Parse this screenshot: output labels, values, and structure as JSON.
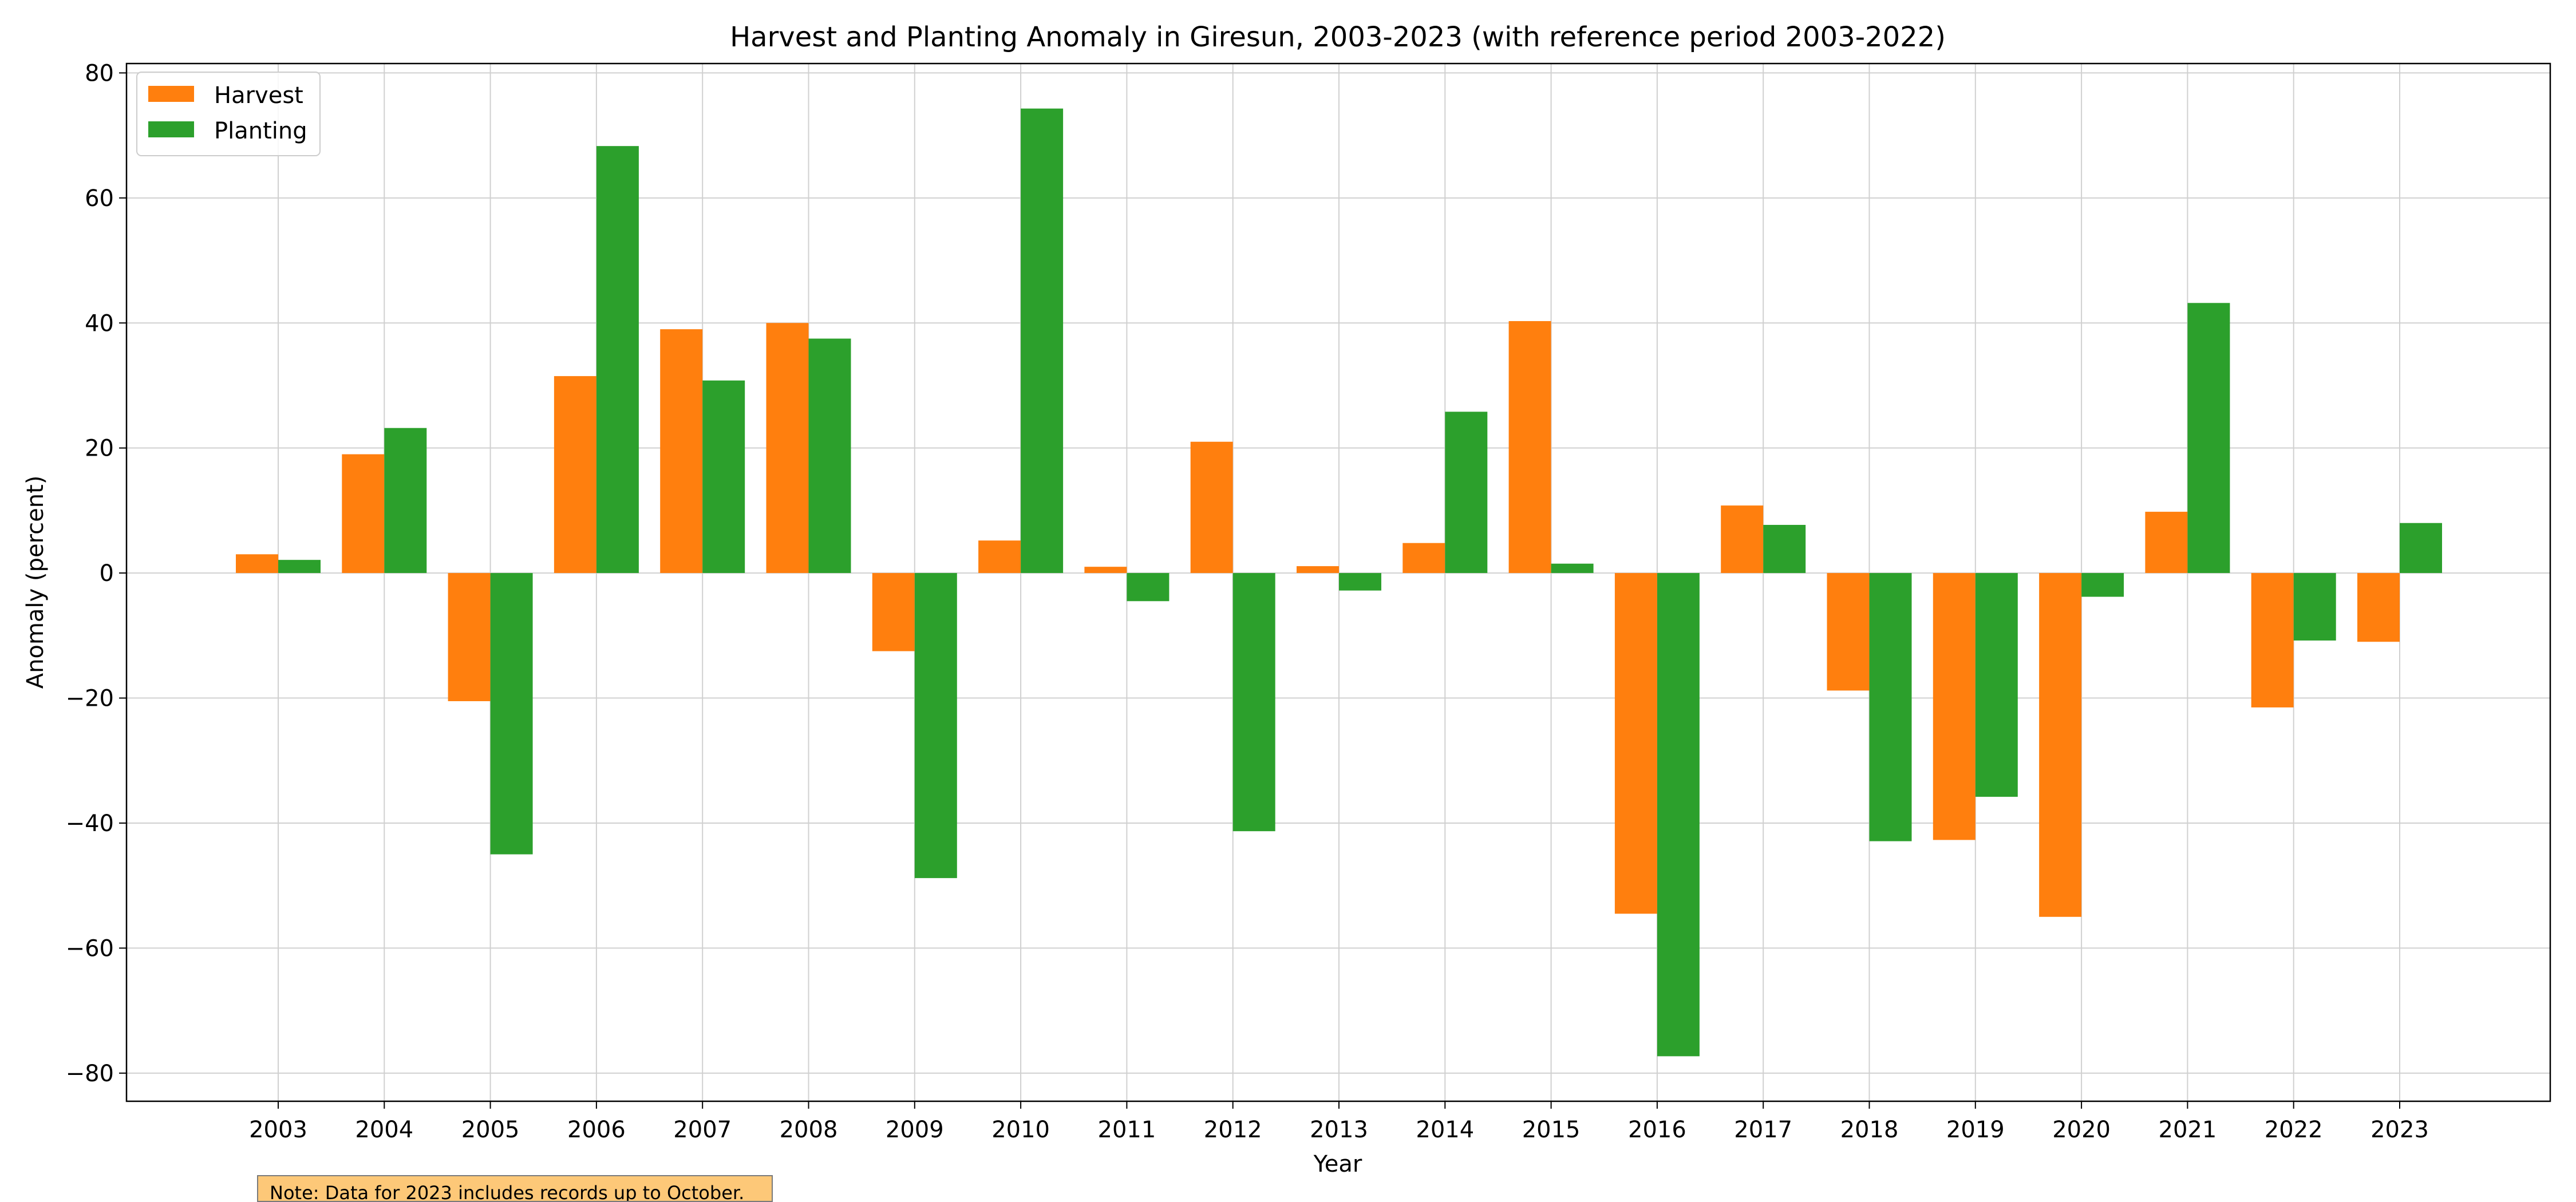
{
  "chart_data": {
    "type": "bar",
    "title": "Harvest and Planting Anomaly in Giresun, 2003-2023 (with reference period 2003-2022)",
    "xlabel": "Year",
    "ylabel": "Anomaly (percent)",
    "ylim": [
      -84.5,
      81.5
    ],
    "yticks": [
      80,
      60,
      40,
      20,
      0,
      -20,
      -40,
      -60,
      -80
    ],
    "ytick_labels": [
      "80",
      "60",
      "40",
      "20",
      "0",
      "−20",
      "−40",
      "−60",
      "−80"
    ],
    "grid": true,
    "legend_placement": "top-left",
    "categories": [
      "2003",
      "2004",
      "2005",
      "2006",
      "2007",
      "2008",
      "2009",
      "2010",
      "2011",
      "2012",
      "2013",
      "2014",
      "2015",
      "2016",
      "2017",
      "2018",
      "2019",
      "2020",
      "2021",
      "2022",
      "2023"
    ],
    "series": [
      {
        "name": "Harvest",
        "color": "#ff7f0e",
        "values": [
          3,
          19,
          -20.5,
          31.5,
          39,
          40,
          -12.5,
          5.2,
          1,
          21,
          1.1,
          4.8,
          40.3,
          -54.5,
          10.8,
          -18.8,
          -42.7,
          -55,
          9.8,
          -21.5,
          -11
        ]
      },
      {
        "name": "Planting",
        "color": "#2ca02c",
        "values": [
          2.1,
          23.2,
          -45,
          68.3,
          30.8,
          37.5,
          -48.8,
          74.3,
          -4.5,
          -41.3,
          -2.8,
          25.8,
          1.5,
          -77.3,
          7.7,
          -42.9,
          -35.8,
          -3.8,
          43.2,
          -10.8,
          8
        ]
      }
    ],
    "note": "Note: Data for 2023 includes records up to October."
  }
}
